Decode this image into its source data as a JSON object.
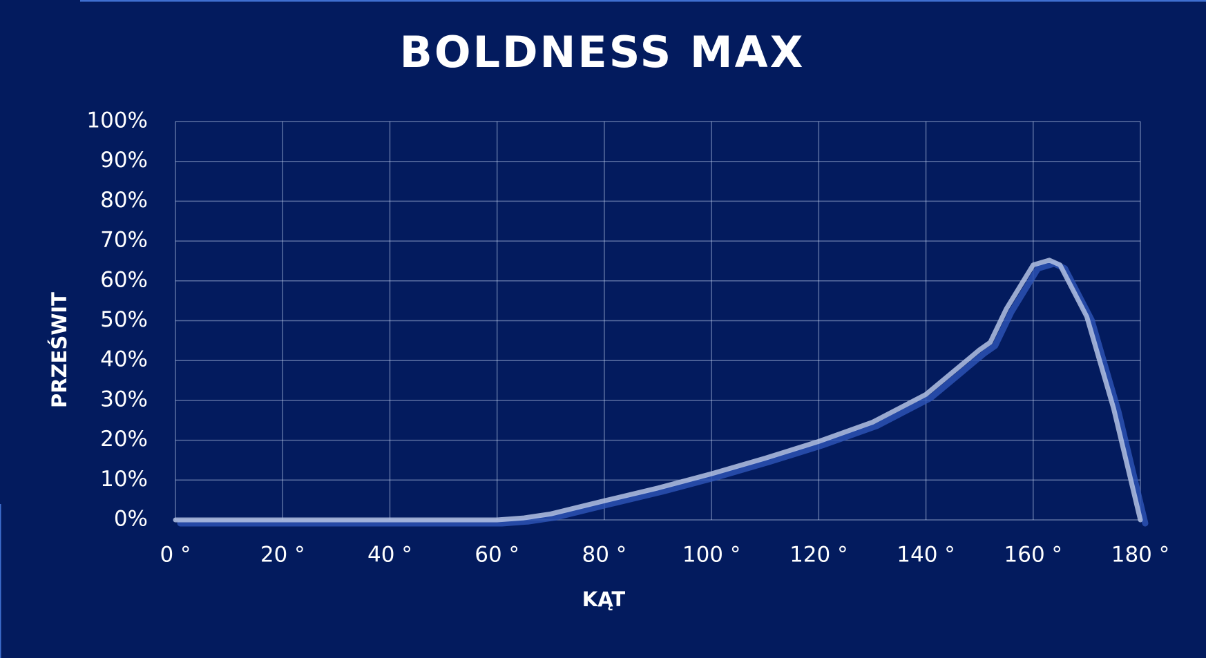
{
  "chart_data": {
    "type": "line",
    "title": "BOLDNESS MAX",
    "x_label": "KĄT",
    "y_label": "PRZEŚWIT",
    "series": [
      {
        "color": "#b4c2e4",
        "x": [
          0,
          20,
          40,
          60,
          65,
          70,
          80,
          90,
          100,
          110,
          120,
          130,
          140,
          150,
          152,
          155,
          160,
          163,
          165,
          170,
          175,
          180
        ],
        "values": [
          0,
          0,
          0,
          0,
          0.5,
          1.5,
          4.8,
          8,
          11.6,
          15.5,
          19.7,
          24.5,
          31.5,
          42.7,
          44.6,
          53,
          64,
          65.2,
          64,
          51,
          28,
          0
        ]
      }
    ],
    "xlim": [
      0,
      180
    ],
    "xticks": [
      {
        "value": 0,
        "label": "0 °"
      },
      {
        "value": 20,
        "label": "20 °"
      },
      {
        "value": 40,
        "label": "40 °"
      },
      {
        "value": 60,
        "label": "60 °"
      },
      {
        "value": 80,
        "label": "80 °"
      },
      {
        "value": 100,
        "label": "100 °"
      },
      {
        "value": 120,
        "label": "120 °"
      },
      {
        "value": 140,
        "label": "140 °"
      },
      {
        "value": 160,
        "label": "160 °"
      },
      {
        "value": 180,
        "label": "180 °"
      }
    ],
    "ylim": [
      0,
      100
    ],
    "yticks": [
      {
        "value": 0,
        "label": "0%"
      },
      {
        "value": 10,
        "label": "10%"
      },
      {
        "value": 20,
        "label": "20%"
      },
      {
        "value": 30,
        "label": "30%"
      },
      {
        "value": 40,
        "label": "40%"
      },
      {
        "value": 50,
        "label": "50%"
      },
      {
        "value": 60,
        "label": "60%"
      },
      {
        "value": 70,
        "label": "70%"
      },
      {
        "value": 80,
        "label": "80%"
      },
      {
        "value": 90,
        "label": "90%"
      },
      {
        "value": 100,
        "label": "100%"
      }
    ],
    "grid": true
  }
}
